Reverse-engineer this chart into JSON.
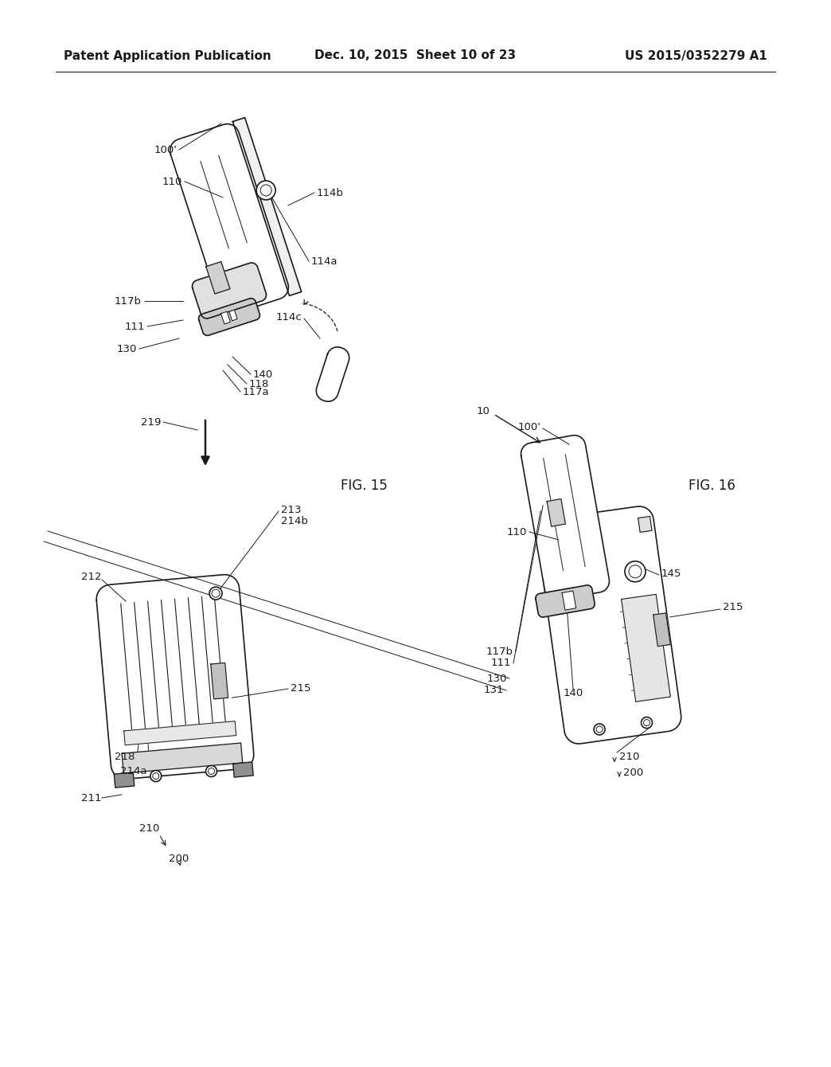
{
  "title_left": "Patent Application Publication",
  "title_center": "Dec. 10, 2015  Sheet 10 of 23",
  "title_right": "US 2015/0352279 A1",
  "fig15_label": "FIG. 15",
  "fig16_label": "FIG. 16",
  "background_color": "#ffffff",
  "line_color": "#1a1a1a",
  "header_font_size": 11,
  "label_font_size": 9.5
}
